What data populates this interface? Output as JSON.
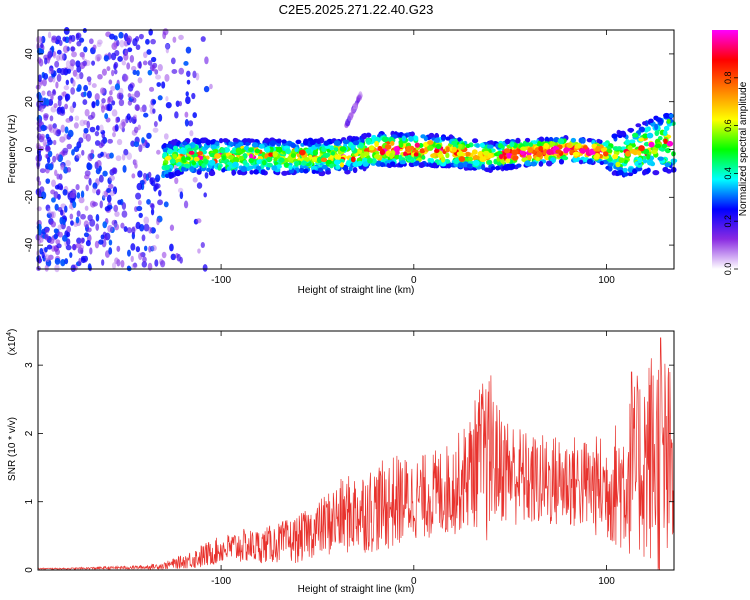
{
  "title": "C2E5.2025.271.22.40.G23",
  "chart_data": [
    {
      "type": "heatmap",
      "name": "spectrogram",
      "xlabel": "Height of straight line (km)",
      "ylabel": "Frequency (Hz)",
      "xlim": [
        -195,
        135
      ],
      "ylim": [
        -50,
        50
      ],
      "xticks": [
        -100,
        0,
        100
      ],
      "xtick_labels": [
        "-100",
        "0",
        "100"
      ],
      "yticks": [
        -40,
        -20,
        0,
        20,
        40
      ],
      "ytick_labels": [
        "-40",
        "-20",
        "0",
        "20",
        "40"
      ],
      "colorbar": {
        "label": "Normalized spectral amplitude",
        "range": [
          0,
          1
        ],
        "ticks": [
          0,
          0.2,
          0.4,
          0.6,
          0.8
        ],
        "tick_labels": [
          "0.0",
          "0.2",
          "0.4",
          "0.6",
          "0.8"
        ],
        "colors": [
          "#ffffff",
          "#8a2be2",
          "#0000ff",
          "#00ffff",
          "#00ff00",
          "#ffff00",
          "#ff7f00",
          "#ff0000",
          "#ff00ff"
        ]
      },
      "features": [
        {
          "name": "noise region",
          "x_range": [
            -195,
            -130
          ],
          "freq_range": [
            -50,
            50
          ],
          "amplitude": 0.15
        },
        {
          "name": "signal band",
          "x_range": [
            -130,
            135
          ],
          "freq_center": 0,
          "amplitude_peak": 0.95
        },
        {
          "name": "drifting trace",
          "x_range": [
            -35,
            -27
          ],
          "freq_range": [
            10,
            24
          ],
          "amplitude": 0.1
        }
      ],
      "band_centers": [
        {
          "x": -135,
          "f": -6
        },
        {
          "x": -120,
          "f": -3
        },
        {
          "x": -100,
          "f": -3
        },
        {
          "x": -80,
          "f": -3
        },
        {
          "x": -60,
          "f": -3
        },
        {
          "x": -40,
          "f": -3
        },
        {
          "x": -30,
          "f": -2
        },
        {
          "x": -20,
          "f": 0
        },
        {
          "x": 0,
          "f": 0
        },
        {
          "x": 20,
          "f": -1
        },
        {
          "x": 40,
          "f": -3
        },
        {
          "x": 50,
          "f": -2
        },
        {
          "x": 80,
          "f": 0
        },
        {
          "x": 110,
          "f": -2
        },
        {
          "x": 125,
          "f": 2
        },
        {
          "x": 135,
          "f": 4
        }
      ]
    },
    {
      "type": "line",
      "name": "snr",
      "xlabel": "Height of straight line (km)",
      "ylabel": "SNR (10 * v/v)",
      "y_multiplier": "(x10",
      "y_exponent": "4",
      "y_multiplier_close": ")",
      "xlim": [
        -195,
        135
      ],
      "ylim": [
        0,
        3.5
      ],
      "xticks": [
        -100,
        0,
        100
      ],
      "xtick_labels": [
        "-100",
        "0",
        "100"
      ],
      "yticks": [
        0,
        1,
        2,
        3
      ],
      "ytick_labels": [
        "0",
        "1",
        "2",
        "3"
      ],
      "line_color": "#e8322d",
      "series": [
        {
          "name": "SNR",
          "x": [
            -195,
            -180,
            -160,
            -140,
            -130,
            -120,
            -110,
            -100,
            -90,
            -80,
            -70,
            -60,
            -50,
            -40,
            -30,
            -20,
            -10,
            0,
            10,
            20,
            28,
            35,
            40,
            42,
            50,
            60,
            70,
            80,
            90,
            100,
            110,
            115,
            120,
            125,
            130,
            135
          ],
          "y": [
            0.02,
            0.02,
            0.03,
            0.04,
            0.06,
            0.12,
            0.2,
            0.3,
            0.35,
            0.35,
            0.4,
            0.45,
            0.6,
            0.75,
            0.85,
            0.9,
            1.0,
            1.05,
            1.1,
            1.2,
            1.4,
            1.7,
            1.5,
            1.6,
            1.45,
            1.3,
            1.3,
            1.3,
            1.25,
            1.2,
            1.3,
            1.5,
            1.6,
            1.7,
            1.5,
            1.4
          ],
          "spread": [
            0.01,
            0.01,
            0.02,
            0.03,
            0.05,
            0.1,
            0.18,
            0.2,
            0.25,
            0.25,
            0.3,
            0.35,
            0.4,
            0.55,
            0.6,
            0.65,
            0.7,
            0.6,
            0.65,
            0.7,
            0.8,
            1.1,
            1.3,
            0.9,
            0.8,
            0.7,
            0.7,
            0.7,
            0.7,
            0.8,
            1.1,
            1.3,
            1.5,
            1.7,
            1.8,
            1.4
          ]
        }
      ],
      "peaks": [
        {
          "x": 128,
          "y": 3.4
        },
        {
          "x": 40,
          "y": 2.85
        },
        {
          "x": 113,
          "y": 2.9
        }
      ]
    }
  ]
}
